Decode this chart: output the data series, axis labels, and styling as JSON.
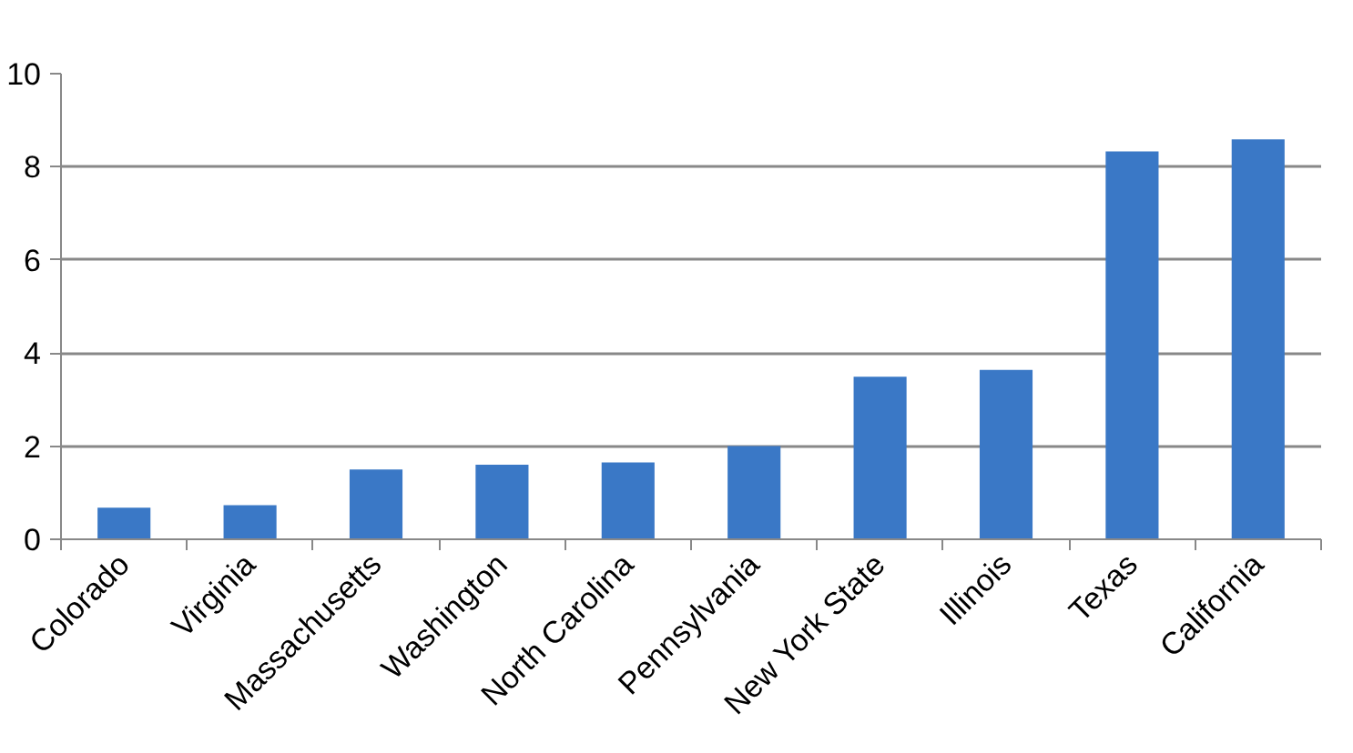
{
  "chart_data": {
    "type": "bar",
    "categories": [
      "Colorado",
      "Virginia",
      "Massachusetts",
      "Washington",
      "North Carolina",
      "Pennsylvania",
      "New York State",
      "Illinois",
      "Texas",
      "California"
    ],
    "values": [
      0.68,
      0.73,
      1.5,
      1.6,
      1.65,
      2.0,
      3.49,
      3.64,
      8.33,
      8.59
    ],
    "color": "#3a78c6",
    "ylim": [
      0,
      10
    ],
    "yticks": [
      0,
      2,
      4,
      6,
      8,
      10
    ],
    "grid": "y"
  }
}
